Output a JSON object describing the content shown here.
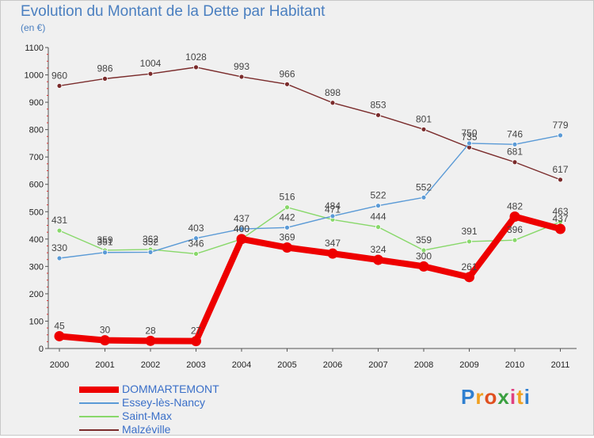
{
  "title": "Evolution du Montant de la Dette par Habitant",
  "unit": "(en €)",
  "logo": {
    "letters": [
      "P",
      "r",
      "o",
      "x",
      "i",
      "t",
      "i"
    ],
    "colors": [
      "#2f7fd0",
      "#f0a020",
      "#e05020",
      "#3aa040",
      "#e04080",
      "#f0a020",
      "#2f7fd0"
    ]
  },
  "chart_data": {
    "type": "line",
    "title": "Evolution du Montant de la Dette par Habitant",
    "ylabel": "(en €)",
    "x": [
      "2000",
      "2001",
      "2002",
      "2003",
      "2004",
      "2005",
      "2006",
      "2007",
      "2008",
      "2009",
      "2010",
      "2011"
    ],
    "ylim": [
      0,
      1100
    ],
    "yticks": [
      0,
      100,
      200,
      300,
      400,
      500,
      600,
      700,
      800,
      900,
      1000,
      1100
    ],
    "grid": false,
    "legend": "bottom-left",
    "series": [
      {
        "name": "DOMMARTEMONT",
        "color": "#ee0000",
        "values": [
          45,
          30,
          28,
          27,
          400,
          369,
          347,
          324,
          300,
          261,
          482,
          437
        ]
      },
      {
        "name": "Essey-lès-Nancy",
        "color": "#5a9ad6",
        "values": [
          330,
          351,
          352,
          403,
          437,
          442,
          484,
          522,
          552,
          750,
          746,
          779
        ]
      },
      {
        "name": "Saint-Max",
        "color": "#88d86a",
        "values": [
          431,
          359,
          362,
          346,
          400,
          516,
          471,
          444,
          359,
          391,
          396,
          463
        ]
      },
      {
        "name": "Malzéville",
        "color": "#7a2b2b",
        "values": [
          960,
          986,
          1004,
          1028,
          993,
          966,
          898,
          853,
          801,
          735,
          681,
          617
        ]
      }
    ],
    "labels": {
      "DOMMARTEMONT": [
        "45",
        "30",
        "28",
        "27",
        "400",
        "369",
        "347",
        "324",
        "300",
        "261",
        "482",
        "437"
      ],
      "Essey-lès-Nancy": [
        "330",
        "351",
        "352",
        "403",
        "437",
        "442",
        "484",
        "522",
        "552",
        "750",
        "746",
        "779"
      ],
      "Saint-Max": [
        "431",
        "359",
        "362",
        "346",
        "400",
        "516",
        "471",
        "444",
        "359",
        "391",
        "396",
        "463"
      ],
      "Malzéville": [
        "960",
        "986",
        "1004",
        "1028",
        "993",
        "966",
        "898",
        "853",
        "801",
        "735",
        "681",
        "617"
      ]
    }
  }
}
